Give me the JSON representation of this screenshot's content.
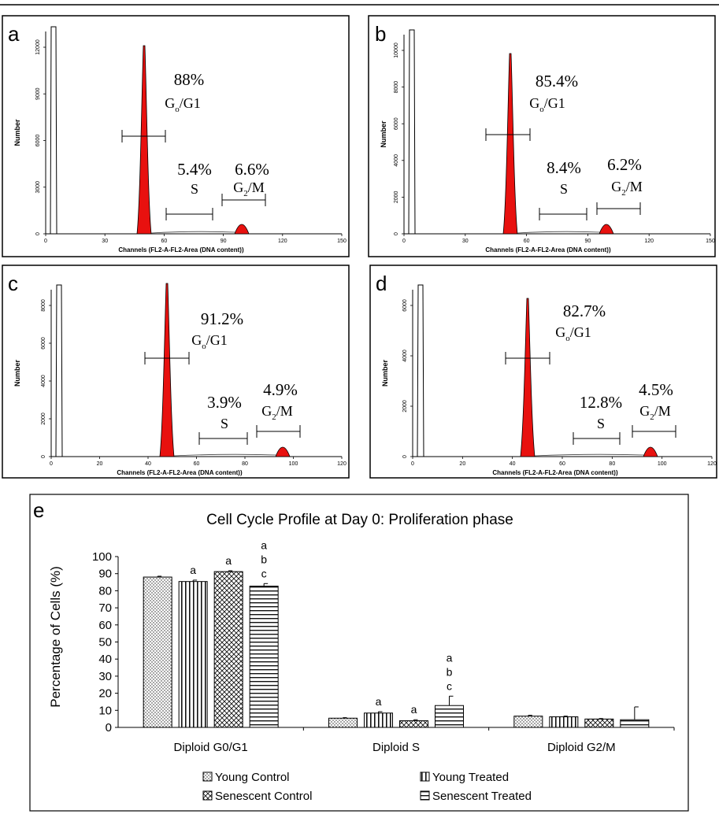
{
  "colors": {
    "fill": "#e8110f",
    "frame": "#000000",
    "bar_fill": "#ffffff"
  },
  "histograms": {
    "xlabel": "Channels (FL2-A-FL2-Area  (DNA content))",
    "ylabel": "Number",
    "panels": [
      {
        "letter": "a",
        "xticks": [
          "0",
          "30",
          "60",
          "90",
          "120",
          "150"
        ],
        "yticks": [
          "0",
          "3000",
          "6000",
          "9000",
          "12000"
        ],
        "g0g1_pct": "88%",
        "s_pct": "5.4%",
        "g2m_pct": "6.6%"
      },
      {
        "letter": "b",
        "xticks": [
          "0",
          "30",
          "60",
          "90",
          "120",
          "150"
        ],
        "yticks": [
          "0",
          "2000",
          "4000",
          "6000",
          "8000",
          "10000"
        ],
        "g0g1_pct": "85.4%",
        "s_pct": "8.4%",
        "g2m_pct": "6.2%"
      },
      {
        "letter": "c",
        "xticks": [
          "0",
          "20",
          "40",
          "60",
          "80",
          "100",
          "120"
        ],
        "yticks": [
          "0",
          "2000",
          "4000",
          "6000",
          "8000"
        ],
        "g0g1_pct": "91.2%",
        "s_pct": "3.9%",
        "g2m_pct": "4.9%"
      },
      {
        "letter": "d",
        "xticks": [
          "0",
          "20",
          "40",
          "60",
          "80",
          "100",
          "120"
        ],
        "yticks": [
          "0",
          "2000",
          "4000",
          "6000"
        ],
        "g0g1_pct": "82.7%",
        "s_pct": "12.8%",
        "g2m_pct": "4.5%"
      }
    ]
  },
  "chart_data": {
    "type": "bar",
    "panel_letter": "e",
    "title": "Cell Cycle Profile at Day 0: Proliferation phase",
    "ylabel": "Percentage of Cells (%)",
    "xlabel": "",
    "ylim": [
      0,
      100
    ],
    "yticks": [
      "0",
      "10",
      "20",
      "30",
      "40",
      "50",
      "60",
      "70",
      "80",
      "90",
      "100"
    ],
    "categories": [
      "Diploid G0/G1",
      "Diploid S",
      "Diploid G2/M"
    ],
    "legend_position": "bottom",
    "series": [
      {
        "name": "Young Control",
        "pattern": "dots",
        "values": [
          88.0,
          5.4,
          6.6
        ],
        "errors": [
          0.5,
          0.3,
          0.5
        ],
        "sig": [
          "",
          "",
          ""
        ]
      },
      {
        "name": "Young Treated",
        "pattern": "vertical",
        "values": [
          85.4,
          8.4,
          6.2
        ],
        "errors": [
          0.8,
          0.8,
          0.4
        ],
        "sig": [
          "a",
          "a",
          ""
        ]
      },
      {
        "name": "Senescent Control",
        "pattern": "crosshatch",
        "values": [
          91.2,
          3.9,
          4.9
        ],
        "errors": [
          0.5,
          0.6,
          0.3
        ],
        "sig": [
          "a",
          "a",
          ""
        ]
      },
      {
        "name": "Senescent Treated",
        "pattern": "horizontal",
        "values": [
          82.7,
          12.8,
          4.5
        ],
        "errors": [
          1.5,
          5.5,
          7.5
        ],
        "sig": [
          "a b c",
          "a b c",
          ""
        ]
      }
    ]
  }
}
